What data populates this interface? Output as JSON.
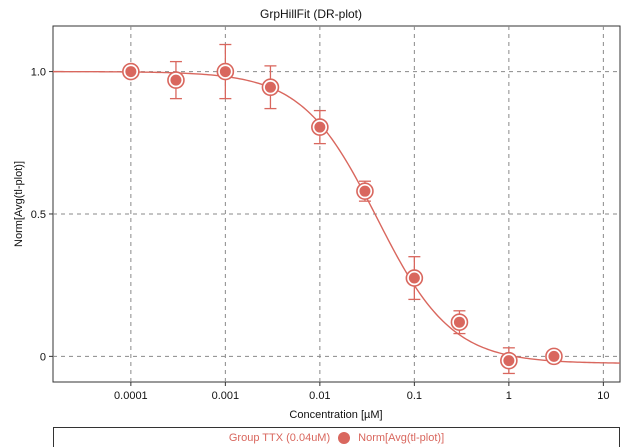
{
  "chart_data": {
    "type": "scatter",
    "title": "GrpHillFit (DR-plot)",
    "xlabel": "Concentration [µM]",
    "ylabel": "Norm[Avg(tl-plot)]",
    "xscale": "log",
    "xlim": [
      1.5e-05,
      15
    ],
    "ylim": [
      -0.09,
      1.16
    ],
    "x_ticks": [
      {
        "v": 0.0001,
        "label": "0.0001"
      },
      {
        "v": 0.001,
        "label": "0.001"
      },
      {
        "v": 0.01,
        "label": "0.01"
      },
      {
        "v": 0.1,
        "label": "0.1"
      },
      {
        "v": 1,
        "label": "1"
      },
      {
        "v": 10,
        "label": "10"
      }
    ],
    "y_ticks": [
      {
        "v": 0,
        "label": "0"
      },
      {
        "v": 0.5,
        "label": "0.5"
      },
      {
        "v": 1.0,
        "label": "1.0"
      }
    ],
    "grid": true,
    "legend_position": "bottom",
    "legend": {
      "group": "Group TTX (0.04uM)",
      "series": "Norm[Avg(tl-plot)]"
    },
    "series": [
      {
        "name": "Norm[Avg(tl-plot)]",
        "color": "#d9675e",
        "points": [
          {
            "x": 0.0001,
            "y": 1.0,
            "err": 0.0
          },
          {
            "x": 0.0003,
            "y": 0.97,
            "err": 0.065
          },
          {
            "x": 0.001,
            "y": 1.0,
            "err": 0.095
          },
          {
            "x": 0.003,
            "y": 0.945,
            "err": 0.075
          },
          {
            "x": 0.01,
            "y": 0.805,
            "err": 0.058
          },
          {
            "x": 0.03,
            "y": 0.58,
            "err": 0.035
          },
          {
            "x": 0.1,
            "y": 0.275,
            "err": 0.075
          },
          {
            "x": 0.3,
            "y": 0.12,
            "err": 0.04
          },
          {
            "x": 1,
            "y": -0.015,
            "err": 0.045
          },
          {
            "x": 3,
            "y": 0.0,
            "err": 0.0
          }
        ]
      }
    ],
    "fit": {
      "type": "hill",
      "top": 1.0,
      "bottom": -0.025,
      "ec50": 0.04,
      "hill": 1.1
    }
  }
}
